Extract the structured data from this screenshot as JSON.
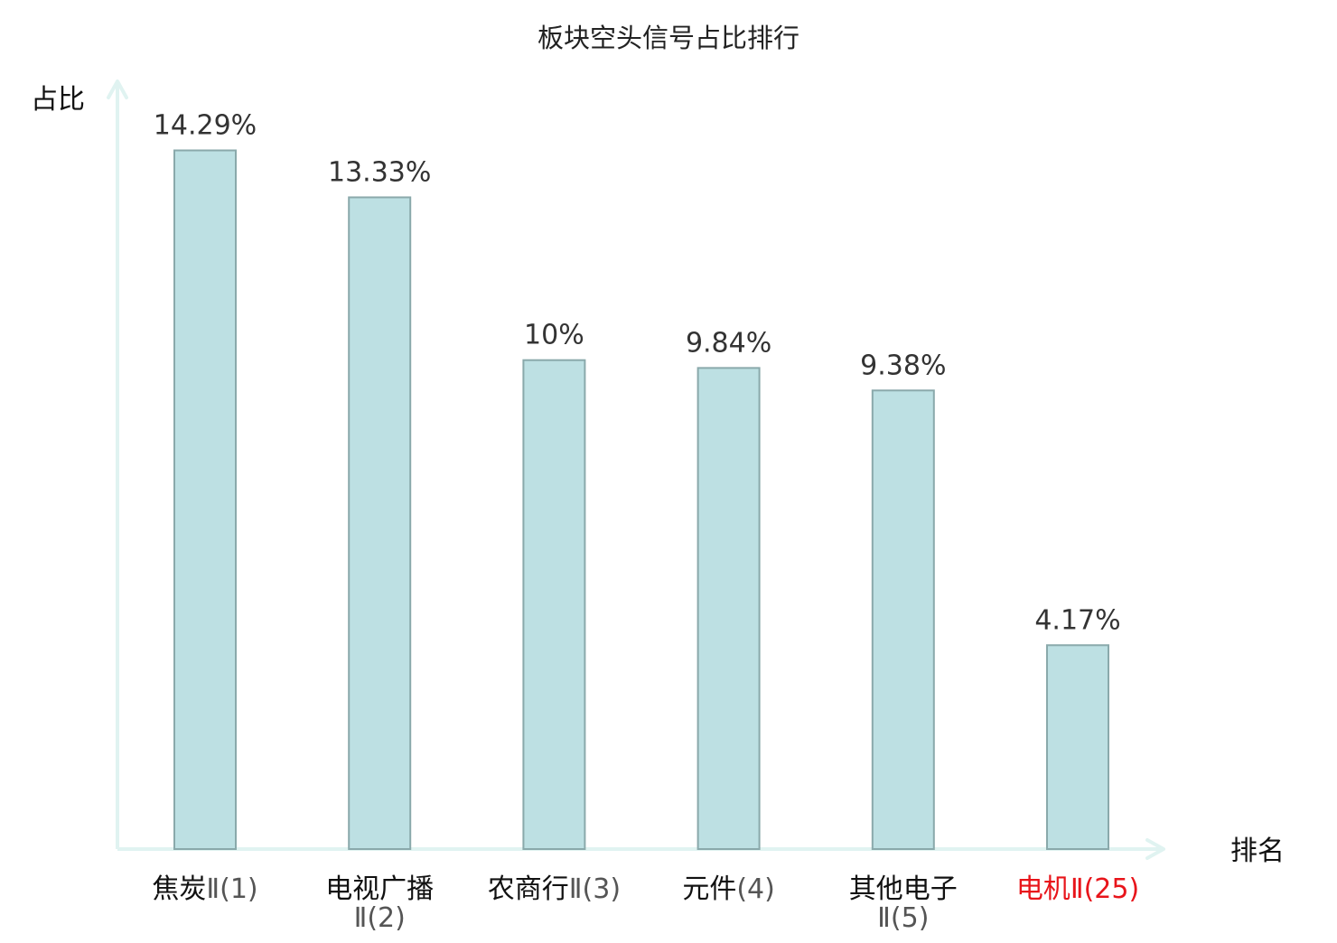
{
  "chart_data": {
    "type": "bar",
    "title": "板块空头信号占比排行",
    "ylabel": "占比",
    "xlabel": "排名",
    "ylim": [
      0,
      15.5
    ],
    "grid": false,
    "categories": [
      {
        "name_line1": "焦炭",
        "name_line2": "",
        "rank": "Ⅱ(1)",
        "value": 14.29,
        "value_label": "14.29%",
        "highlight": false
      },
      {
        "name_line1": "电视广播",
        "name_line2": "Ⅱ(2)",
        "rank": "",
        "value": 13.33,
        "value_label": "13.33%",
        "highlight": false
      },
      {
        "name_line1": "农商行",
        "name_line2": "",
        "rank": "Ⅱ(3)",
        "value": 10.0,
        "value_label": "10%",
        "highlight": false
      },
      {
        "name_line1": "元件",
        "name_line2": "",
        "rank": "(4)",
        "value": 9.84,
        "value_label": "9.84%",
        "highlight": false
      },
      {
        "name_line1": "其他电子",
        "name_line2": "Ⅱ(5)",
        "rank": "",
        "value": 9.38,
        "value_label": "9.38%",
        "highlight": false
      },
      {
        "name_line1": "电机",
        "name_line2": "",
        "rank": "Ⅱ(25)",
        "value": 4.17,
        "value_label": "4.17%",
        "highlight": true
      }
    ],
    "colors": {
      "bar_fill": "#bde0e3",
      "bar_stroke": "#8aa9ab",
      "axis": "#e0f3f1",
      "label_text": "#333333",
      "name_text": "#111111",
      "rank_text": "#555555",
      "highlight": "#e8141a"
    }
  }
}
